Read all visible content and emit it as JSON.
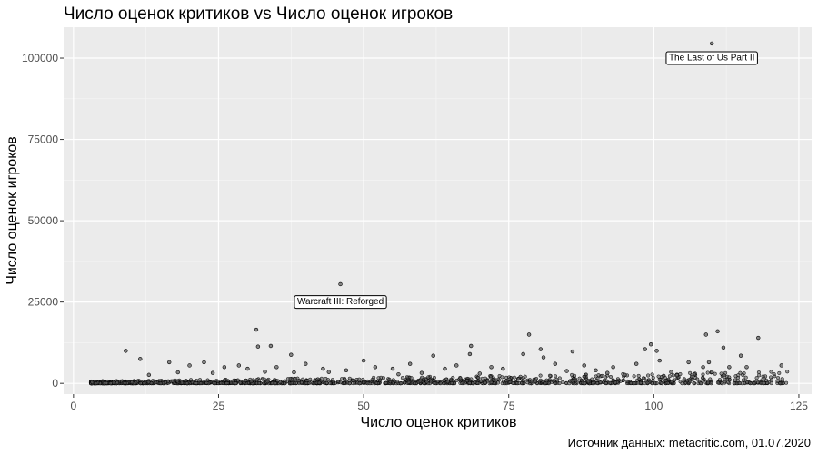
{
  "chart_data": {
    "type": "scatter",
    "title": "Число оценок критиков vs Число оценок игроков",
    "xlabel": "Число оценок критиков",
    "ylabel": "Число оценок игроков",
    "caption": "Источник данных: metacritic.com, 01.07.2020",
    "xlim": [
      -1.7,
      127.2
    ],
    "ylim": [
      -3300,
      109500
    ],
    "x_ticks": [
      0,
      25,
      50,
      75,
      100,
      125
    ],
    "x_tick_labels": [
      "0",
      "25",
      "50",
      "75",
      "100",
      "125"
    ],
    "y_ticks": [
      0,
      25000,
      50000,
      75000,
      100000
    ],
    "y_tick_labels": [
      "0",
      "25000",
      "50000",
      "75000",
      "100000"
    ],
    "grid": true,
    "colors": {
      "panel": "#ebebeb",
      "grid_major": "#ffffff",
      "point_fill": "#5a5a5a",
      "point_stroke": "#000000"
    },
    "annotations": [
      {
        "label": "The Last of Us Part II",
        "x": 110,
        "y": 100000
      },
      {
        "label": "Warcraft III: Reforged",
        "x": 46,
        "y": 25000
      }
    ],
    "points": [
      {
        "x": 110,
        "y": 104500
      },
      {
        "x": 46,
        "y": 30500
      },
      {
        "x": 31.5,
        "y": 16500
      },
      {
        "x": 31.8,
        "y": 11300
      },
      {
        "x": 34,
        "y": 11500
      },
      {
        "x": 37.5,
        "y": 8800
      },
      {
        "x": 9,
        "y": 10000
      },
      {
        "x": 11.5,
        "y": 7500
      },
      {
        "x": 16.5,
        "y": 6500
      },
      {
        "x": 20,
        "y": 5500
      },
      {
        "x": 22.5,
        "y": 6500
      },
      {
        "x": 26,
        "y": 5000
      },
      {
        "x": 28.5,
        "y": 5500
      },
      {
        "x": 30,
        "y": 4500
      },
      {
        "x": 35,
        "y": 5000
      },
      {
        "x": 40,
        "y": 6000
      },
      {
        "x": 43,
        "y": 4500
      },
      {
        "x": 47,
        "y": 4000
      },
      {
        "x": 50,
        "y": 7000
      },
      {
        "x": 52,
        "y": 5000
      },
      {
        "x": 55,
        "y": 4500
      },
      {
        "x": 58,
        "y": 6000
      },
      {
        "x": 62,
        "y": 8500
      },
      {
        "x": 64,
        "y": 4500
      },
      {
        "x": 66,
        "y": 5500
      },
      {
        "x": 68.5,
        "y": 11500
      },
      {
        "x": 68.3,
        "y": 9000
      },
      {
        "x": 72,
        "y": 5000
      },
      {
        "x": 74,
        "y": 4500
      },
      {
        "x": 77.5,
        "y": 9000
      },
      {
        "x": 78.5,
        "y": 15000
      },
      {
        "x": 80.5,
        "y": 10500
      },
      {
        "x": 81,
        "y": 8000
      },
      {
        "x": 83,
        "y": 6000
      },
      {
        "x": 86,
        "y": 9800
      },
      {
        "x": 88,
        "y": 5500
      },
      {
        "x": 90,
        "y": 4000
      },
      {
        "x": 93,
        "y": 5000
      },
      {
        "x": 97,
        "y": 6000
      },
      {
        "x": 98.5,
        "y": 10500
      },
      {
        "x": 99.5,
        "y": 12000
      },
      {
        "x": 100.5,
        "y": 10000
      },
      {
        "x": 101,
        "y": 7000
      },
      {
        "x": 103,
        "y": 3500
      },
      {
        "x": 106,
        "y": 6500
      },
      {
        "x": 108.5,
        "y": 5000
      },
      {
        "x": 109,
        "y": 15000
      },
      {
        "x": 109.5,
        "y": 6500
      },
      {
        "x": 110,
        "y": 3500
      },
      {
        "x": 111,
        "y": 16000
      },
      {
        "x": 112,
        "y": 11000
      },
      {
        "x": 113,
        "y": 5000
      },
      {
        "x": 115,
        "y": 8500
      },
      {
        "x": 116,
        "y": 5000
      },
      {
        "x": 118,
        "y": 14000
      },
      {
        "x": 122,
        "y": 5500
      },
      {
        "x": 107,
        "y": 2800
      },
      {
        "x": 104,
        "y": 2500
      },
      {
        "x": 95,
        "y": 2600
      },
      {
        "x": 92,
        "y": 3200
      },
      {
        "x": 85,
        "y": 3800
      },
      {
        "x": 70,
        "y": 3000
      },
      {
        "x": 60,
        "y": 3200
      },
      {
        "x": 56,
        "y": 2800
      },
      {
        "x": 44,
        "y": 3500
      },
      {
        "x": 38,
        "y": 3400
      },
      {
        "x": 33,
        "y": 3600
      },
      {
        "x": 24,
        "y": 3200
      },
      {
        "x": 18,
        "y": 3400
      },
      {
        "x": 13,
        "y": 2600
      }
    ]
  }
}
